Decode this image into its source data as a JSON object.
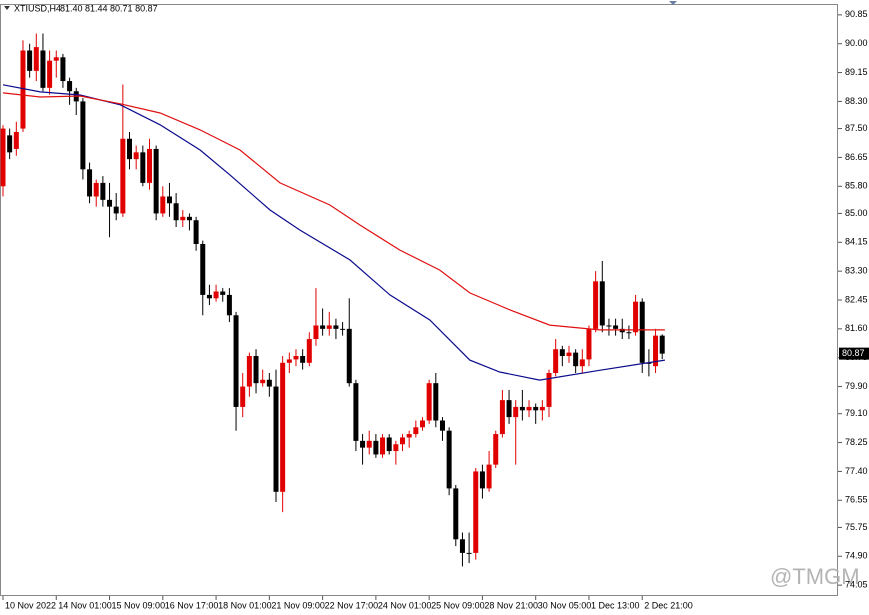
{
  "chart_data": {
    "type": "candlestick",
    "symbol": "XTIUSD,H4",
    "ohlc_text": "81.40 81.44 80.71 80.87",
    "watermark": "@TMGM",
    "up_color": "#e00000",
    "down_color": "#000000",
    "xlim": [
      -0.45,
      125.4
    ],
    "ylim": [
      73.73,
      91.17
    ],
    "yticks": [
      90.85,
      {
        "value": 90.0,
        "label": "90.00"
      },
      89.15,
      {
        "value": 88.3,
        "label": "88.30"
      },
      {
        "value": 87.5,
        "label": "87.50"
      },
      86.65,
      {
        "value": 85.8,
        "label": "85.80"
      },
      {
        "value": 85.0,
        "label": "85.00"
      },
      84.15,
      {
        "value": 83.3,
        "label": "83.30"
      },
      82.45,
      {
        "value": 81.6,
        "label": "81.60"
      },
      80.75,
      {
        "value": 79.9,
        "label": "79.90"
      },
      {
        "value": 79.1,
        "label": "79.10"
      },
      78.25,
      {
        "value": 77.4,
        "label": "77.40"
      },
      76.55,
      75.75,
      {
        "value": 74.9,
        "label": "74.90"
      },
      74.05
    ],
    "xticks": [
      {
        "value": 0,
        "label": "10 Nov 2022"
      },
      {
        "value": 8,
        "label": "14 Nov 01:00"
      },
      {
        "value": 16,
        "label": "15 Nov 09:00"
      },
      {
        "value": 24,
        "label": "16 Nov 17:00"
      },
      {
        "value": 32,
        "label": "18 Nov 01:00"
      },
      {
        "value": 40,
        "label": "21 Nov 09:00"
      },
      {
        "value": 48,
        "label": "22 Nov 17:00"
      },
      {
        "value": 56,
        "label": "24 Nov 01:00"
      },
      {
        "value": 64,
        "label": "25 Nov 09:00"
      },
      {
        "value": 72,
        "label": "28 Nov 21:00"
      },
      {
        "value": 80,
        "label": "30 Nov 05:00"
      },
      {
        "value": 88,
        "label": "1 Dec 13:00"
      },
      {
        "value": 96,
        "label": "2 Dec 21:00"
      }
    ],
    "current_price": {
      "value": 80.87,
      "label": "80.87"
    },
    "open": [
      85.8,
      87.3,
      86.9,
      87.5,
      89.8,
      89.2,
      89.8,
      88.7,
      89.5,
      89.6,
      88.9,
      88.6,
      88.3,
      86.3,
      85.5,
      85.9,
      85.4,
      85.2,
      85.0,
      87.2,
      86.6,
      86.8,
      85.9,
      86.9,
      85.0,
      85.5,
      85.3,
      84.8,
      84.9,
      84.8,
      84.1,
      82.6,
      82.5,
      82.7,
      82.6,
      82.0,
      79.3,
      79.9,
      80.8,
      80.0,
      80.1,
      79.9,
      76.8,
      80.6,
      80.7,
      80.8,
      80.6,
      81.3,
      81.7,
      81.6,
      81.7,
      81.6,
      81.6,
      80.0,
      78.3,
      78.1,
      78.3,
      77.9,
      78.4,
      78.0,
      78.2,
      78.4,
      78.5,
      78.7,
      78.9,
      80.0,
      78.9,
      78.6,
      76.9,
      75.4,
      75.0,
      75.0,
      77.4,
      76.9,
      77.6,
      78.5,
      79.5,
      79.0,
      79.3,
      79.2,
      79.3,
      79.2,
      79.3,
      80.3,
      81.0,
      80.8,
      80.9,
      80.5,
      80.7,
      81.6,
      83.0,
      81.7,
      81.7,
      81.6,
      81.5,
      81.5,
      82.4,
      80.6,
      80.5,
      81.4
    ],
    "high": [
      87.6,
      87.5,
      87.7,
      90.1,
      90.0,
      90.3,
      90.3,
      89.8,
      89.8,
      89.7,
      89.0,
      88.7,
      88.4,
      86.5,
      86.0,
      86.1,
      85.9,
      85.6,
      88.8,
      87.4,
      87.0,
      87.0,
      87.2,
      87.0,
      85.8,
      85.9,
      85.6,
      85.1,
      85.0,
      84.9,
      84.2,
      82.9,
      82.9,
      82.8,
      82.8,
      82.1,
      80.3,
      80.9,
      81.0,
      80.4,
      80.3,
      80.4,
      80.8,
      80.9,
      81.0,
      81.0,
      81.5,
      82.8,
      82.2,
      82.1,
      81.9,
      81.8,
      82.5,
      80.1,
      78.5,
      78.6,
      78.5,
      78.5,
      78.5,
      78.3,
      78.5,
      78.6,
      78.9,
      79.0,
      80.1,
      80.3,
      79.0,
      78.7,
      77.0,
      75.6,
      75.6,
      77.5,
      77.6,
      78.0,
      78.6,
      79.8,
      79.8,
      79.5,
      79.8,
      79.5,
      79.4,
      79.5,
      80.4,
      81.3,
      81.1,
      81.1,
      81.0,
      81.0,
      81.7,
      83.3,
      83.6,
      81.9,
      81.9,
      81.9,
      81.7,
      82.6,
      82.5,
      81.0,
      81.6,
      81.44
    ],
    "low": [
      85.5,
      86.6,
      86.7,
      87.4,
      89.0,
      88.9,
      88.6,
      88.5,
      89.0,
      88.7,
      88.2,
      87.9,
      86.0,
      85.3,
      85.2,
      85.2,
      84.3,
      84.8,
      84.9,
      86.3,
      86.3,
      85.8,
      85.7,
      84.8,
      84.9,
      84.9,
      84.6,
      84.6,
      84.5,
      83.9,
      82.0,
      82.3,
      82.4,
      82.4,
      81.8,
      78.6,
      79.0,
      79.6,
      79.7,
      79.9,
      79.6,
      76.5,
      76.2,
      80.3,
      80.5,
      80.4,
      80.5,
      81.1,
      81.4,
      81.4,
      81.3,
      81.4,
      79.9,
      78.0,
      77.6,
      77.9,
      77.8,
      77.8,
      77.9,
      77.6,
      78.0,
      78.1,
      78.4,
      78.6,
      78.8,
      78.7,
      78.3,
      76.7,
      75.2,
      74.6,
      74.7,
      74.8,
      76.6,
      76.8,
      77.5,
      78.4,
      78.8,
      77.6,
      78.9,
      79.0,
      78.8,
      78.9,
      79.0,
      80.2,
      80.5,
      80.6,
      80.3,
      80.3,
      80.5,
      81.5,
      81.5,
      81.4,
      81.4,
      81.3,
      81.3,
      81.4,
      80.3,
      80.2,
      80.3,
      80.71
    ],
    "close": [
      87.5,
      86.8,
      87.4,
      89.8,
      89.2,
      89.9,
      88.7,
      89.5,
      89.6,
      88.9,
      88.6,
      88.3,
      86.3,
      85.5,
      85.9,
      85.4,
      85.2,
      85.0,
      87.2,
      86.6,
      86.8,
      85.9,
      86.9,
      85.0,
      85.5,
      85.3,
      84.8,
      84.9,
      84.8,
      84.1,
      82.6,
      82.5,
      82.7,
      82.6,
      82.0,
      79.3,
      79.9,
      80.8,
      80.0,
      80.1,
      79.9,
      76.8,
      80.6,
      80.7,
      80.8,
      80.6,
      81.3,
      81.7,
      81.6,
      81.7,
      81.6,
      81.6,
      80.0,
      78.3,
      78.1,
      78.3,
      77.9,
      78.4,
      78.0,
      78.2,
      78.4,
      78.5,
      78.7,
      78.9,
      80.0,
      78.9,
      78.6,
      76.9,
      75.4,
      75.0,
      75.0,
      77.4,
      76.9,
      77.6,
      78.5,
      79.5,
      79.0,
      79.3,
      79.2,
      79.3,
      79.2,
      79.3,
      80.3,
      81.0,
      80.8,
      80.9,
      80.5,
      80.7,
      81.6,
      83.0,
      81.7,
      81.7,
      81.6,
      81.5,
      81.5,
      82.4,
      80.6,
      80.6,
      81.4,
      80.87
    ],
    "lines": [
      {
        "color": "#0a0a8c",
        "x": [
          0,
          5.6,
          11.6,
          17.6,
          23.6,
          29.6,
          34.1,
          40.1,
          44.6,
          52.1,
          58.1,
          64.1,
          70.1,
          74.6,
          80.6,
          89.6,
          99.4
        ],
        "values": [
          88.79,
          88.58,
          88.49,
          88.2,
          87.61,
          86.87,
          86.13,
          85.1,
          84.51,
          83.63,
          82.6,
          81.86,
          80.68,
          80.33,
          80.09,
          80.38,
          80.68
        ]
      },
      {
        "color": "#e01010",
        "x": [
          0,
          5.6,
          11.6,
          17.6,
          23.6,
          29.6,
          35.6,
          41.6,
          49.1,
          53.6,
          59.6,
          65.6,
          70.1,
          76.1,
          82.1,
          89.6,
          99.4
        ],
        "values": [
          88.55,
          88.43,
          88.46,
          88.23,
          87.96,
          87.46,
          86.87,
          85.9,
          85.25,
          84.66,
          83.92,
          83.33,
          82.66,
          82.16,
          81.71,
          81.57,
          81.57
        ]
      }
    ]
  }
}
